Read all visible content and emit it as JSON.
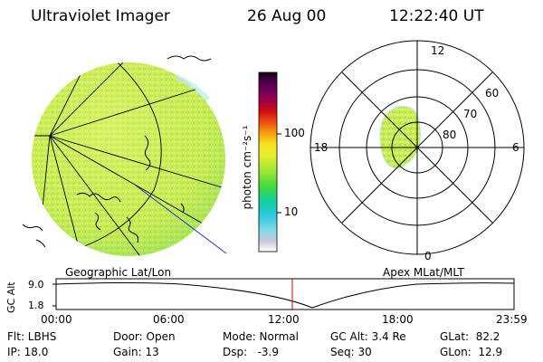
{
  "header": {
    "title": "Ultraviolet Imager",
    "date": "26 Aug 00",
    "time": "12:22:40 UT"
  },
  "colorbar": {
    "label": "photon cm⁻²s⁻¹",
    "ticks": [
      "100",
      "10"
    ]
  },
  "polar": {
    "clock_labels": [
      "12",
      "18",
      "6",
      "0"
    ],
    "lat_labels": [
      "60",
      "70",
      "80"
    ]
  },
  "panel_titles": {
    "left": "Geographic Lat/Lon",
    "right": "Apex MLat/MLT"
  },
  "altitude_plot": {
    "ylabel": "GC Alt",
    "yticks": [
      "9.0",
      "1.8"
    ],
    "xticks": [
      "00:00",
      "06:00",
      "12:00",
      "18:00",
      "23:59"
    ],
    "marker_time": "12:22:40"
  },
  "info": {
    "row1": [
      "Flt: LBHS",
      "Door: Open",
      "Mode: Normal",
      "GC Alt: 3.4 Re",
      "GLat:  82.2"
    ],
    "row2": [
      "IP: 18.0",
      "Gain: 13",
      "Dsp:   -3.9",
      "Seq: 30",
      "GLon:  12.9"
    ]
  },
  "colors": {
    "accent_marker": "#cc0000",
    "aurora": "#d8f25a",
    "meridian_line": "#2233cc"
  }
}
